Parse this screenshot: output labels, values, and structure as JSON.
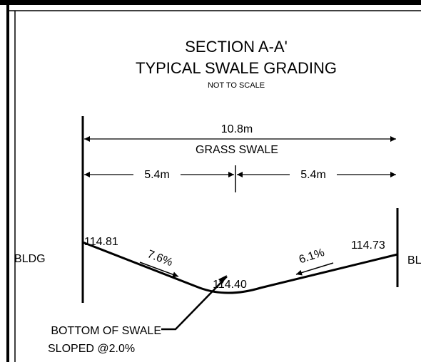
{
  "header": {
    "title": "SECTION A-A'",
    "subtitle": "TYPICAL SWALE GRADING",
    "note": "NOT TO SCALE"
  },
  "dimensions": {
    "total": "10.8m",
    "total_label": "GRASS SWALE",
    "left_half": "5.4m",
    "right_half": "5.4m"
  },
  "profile": {
    "left_elevation": "114.81",
    "left_slope": "7.6%",
    "bottom_elevation": "114.40",
    "right_slope": "6.1%",
    "right_elevation": "114.73"
  },
  "labels": {
    "left_building": "BLDG",
    "right_building": "BL",
    "bottom_line1": "BOTTOM OF SWALE",
    "bottom_line2": "SLOPED @2.0%"
  }
}
